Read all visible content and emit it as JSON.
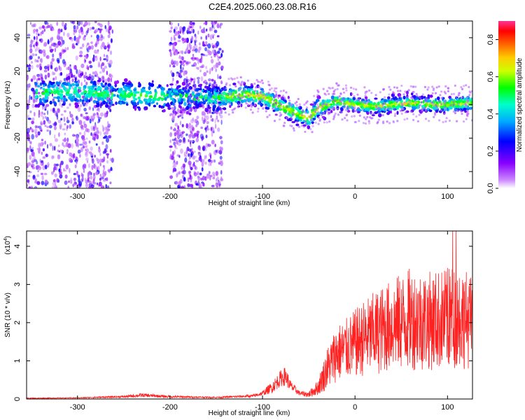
{
  "title": "C2E4.2025.060.23.08.R16",
  "chart_data": [
    {
      "type": "heatmap",
      "panel": "spectrogram",
      "xlabel": "Height of straight line (km)",
      "ylabel": "Frequency (Hz)",
      "xlim": [
        -355,
        127
      ],
      "ylim": [
        -50,
        50
      ],
      "xticks": [
        -300,
        -200,
        -100,
        0,
        100
      ],
      "yticks": [
        -40,
        -20,
        0,
        20,
        40
      ],
      "colorbar": {
        "label": "Normalized spectral amplitude",
        "range": [
          0.0,
          0.9
        ],
        "ticks": [
          0.0,
          0.2,
          0.4,
          0.6,
          0.8
        ],
        "colormap": [
          "#ffffff",
          "#8800ff",
          "#0000ff",
          "#00ffff",
          "#00ff00",
          "#ffff00",
          "#ff8800",
          "#ff0000",
          "#ff00aa"
        ]
      },
      "ridge": {
        "x": [
          -340,
          -300,
          -260,
          -220,
          -200,
          -150,
          -120,
          -100,
          -80,
          -60,
          -50,
          -40,
          -20,
          0,
          20,
          40,
          60,
          80,
          100,
          120
        ],
        "center_hz": [
          7,
          8,
          6,
          5,
          5,
          4,
          6,
          5,
          -1,
          -6,
          -8,
          -2,
          2,
          0,
          -1,
          0,
          1,
          0,
          0,
          1
        ]
      },
      "noise_bands_km": [
        [
          -355,
          -262
        ],
        [
          -200,
          -143
        ]
      ],
      "grid": false
    },
    {
      "type": "line",
      "panel": "snr",
      "xlabel": "Height of straight line (km)",
      "ylabel": "SNR (10 * v/v)",
      "multiplier": "(x10",
      "multiplier_exp": "4",
      "multiplier_close": ")",
      "xlim": [
        -355,
        127
      ],
      "ylim": [
        0,
        4.4
      ],
      "xticks": [
        -300,
        -200,
        -100,
        0,
        100
      ],
      "yticks": [
        0,
        1,
        2,
        3,
        4
      ],
      "line_color": "#ff2020",
      "series": [
        {
          "x": [
            -355,
            -300,
            -250,
            -230,
            -200,
            -150,
            -110,
            -100,
            -90,
            -80,
            -75,
            -70,
            -60,
            -50,
            -40,
            -30,
            -20,
            -10,
            0,
            10,
            20,
            40,
            60,
            80,
            100,
            110,
            120,
            127
          ],
          "values": [
            0.02,
            0.03,
            0.06,
            0.1,
            0.06,
            0.04,
            0.08,
            0.15,
            0.3,
            0.55,
            0.6,
            0.35,
            0.15,
            0.12,
            0.3,
            0.8,
            1.2,
            1.3,
            1.45,
            1.6,
            1.7,
            1.95,
            2.1,
            2.05,
            2.1,
            2.2,
            2.1,
            2.0
          ],
          "spread": [
            0.01,
            0.01,
            0.03,
            0.05,
            0.03,
            0.02,
            0.04,
            0.06,
            0.15,
            0.22,
            0.25,
            0.15,
            0.06,
            0.08,
            0.2,
            0.55,
            0.75,
            0.8,
            0.9,
            1.0,
            1.1,
            1.2,
            1.35,
            1.3,
            1.35,
            1.4,
            1.3,
            1.2
          ]
        }
      ],
      "peak": 4.4,
      "grid": false
    }
  ]
}
